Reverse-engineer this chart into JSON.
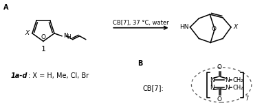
{
  "background_color": "#ffffff",
  "panel_a_label": "A",
  "panel_b_label": "B",
  "reaction_condition": "CB[7], 37 °C, water",
  "compound_label": "1",
  "substituent_label_bold": "1a-d",
  "substituent_label_rest": ": X = H, Me, Cl, Br",
  "cb7_label": "CB[7]:",
  "subscript_7": "7",
  "X_label": "X",
  "HN_label": "HN",
  "O_top": "O",
  "O_bot": "O",
  "N_label": "N",
  "CH2_label": "CH₂",
  "fig_width": 4.0,
  "fig_height": 1.64,
  "dpi": 100
}
